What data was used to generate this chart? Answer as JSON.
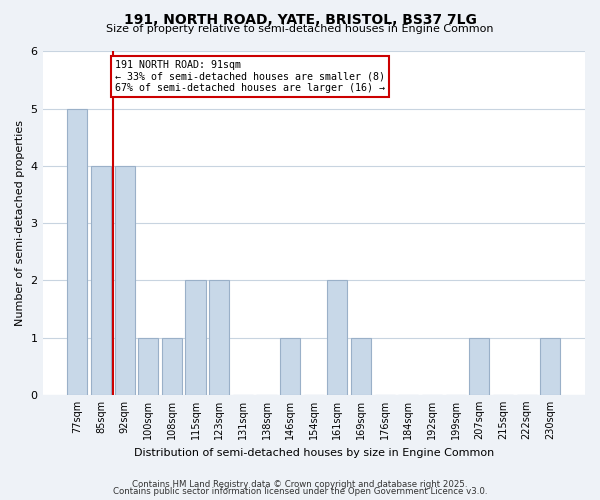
{
  "title": "191, NORTH ROAD, YATE, BRISTOL, BS37 7LG",
  "subtitle": "Size of property relative to semi-detached houses in Engine Common",
  "bar_labels": [
    "77sqm",
    "85sqm",
    "92sqm",
    "100sqm",
    "108sqm",
    "115sqm",
    "123sqm",
    "131sqm",
    "138sqm",
    "146sqm",
    "154sqm",
    "161sqm",
    "169sqm",
    "176sqm",
    "184sqm",
    "192sqm",
    "199sqm",
    "207sqm",
    "215sqm",
    "222sqm",
    "230sqm"
  ],
  "bar_values": [
    5,
    4,
    4,
    1,
    1,
    2,
    2,
    0,
    0,
    1,
    0,
    2,
    1,
    0,
    0,
    0,
    0,
    1,
    0,
    0,
    1
  ],
  "bar_color": "#c8d8e8",
  "bar_edge_color": "#9ab0c8",
  "vline_color": "#cc0000",
  "vline_x": 1.5,
  "annotation_text": "191 NORTH ROAD: 91sqm\n← 33% of semi-detached houses are smaller (8)\n67% of semi-detached houses are larger (16) →",
  "annotation_box_color": "white",
  "annotation_box_edge": "#cc0000",
  "xlabel": "Distribution of semi-detached houses by size in Engine Common",
  "ylabel": "Number of semi-detached properties",
  "ylim": [
    0,
    6
  ],
  "yticks": [
    0,
    1,
    2,
    3,
    4,
    5,
    6
  ],
  "footer1": "Contains HM Land Registry data © Crown copyright and database right 2025.",
  "footer2": "Contains public sector information licensed under the Open Government Licence v3.0.",
  "bg_color": "#eef2f7",
  "plot_bg_color": "#ffffff",
  "grid_color": "#c8d4e0"
}
